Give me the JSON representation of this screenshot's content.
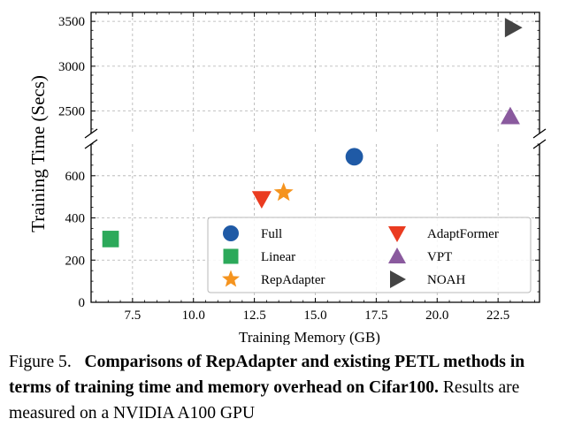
{
  "chart_data": {
    "type": "scatter",
    "xlabel": "Training Memory (GB)",
    "ylabel": "Training Time (Secs)",
    "xlim": [
      5.8,
      24.2
    ],
    "xticks": [
      7.5,
      10.0,
      12.5,
      15.0,
      17.5,
      20.0,
      22.5
    ],
    "xtick_labels": [
      "7.5",
      "10.0",
      "12.5",
      "15.0",
      "17.5",
      "20.0",
      "22.5"
    ],
    "lower_ylim": [
      0,
      750
    ],
    "upper_ylim": [
      2250,
      3600
    ],
    "axis_break": "between 750 and 2250",
    "yticks": [
      0,
      200,
      400,
      600,
      2500,
      3000,
      3500
    ],
    "ytick_labels": [
      "0",
      "200",
      "400",
      "600",
      "2500",
      "3000",
      "3500"
    ],
    "grid": true,
    "legend_position": "lower-right",
    "series": [
      {
        "name": "Full",
        "x": 16.6,
        "y": 690,
        "marker": "circle",
        "color": "#1f5aa6"
      },
      {
        "name": "Linear",
        "x": 6.6,
        "y": 300,
        "marker": "square",
        "color": "#2ca95a"
      },
      {
        "name": "RepAdapter",
        "x": 13.7,
        "y": 520,
        "marker": "star",
        "color": "#f5941f"
      },
      {
        "name": "AdaptFormer",
        "x": 12.8,
        "y": 490,
        "marker": "triangle-down",
        "color": "#ea3b20"
      },
      {
        "name": "VPT",
        "x": 23.0,
        "y": 2440,
        "marker": "triangle-up",
        "color": "#8a5a9e"
      },
      {
        "name": "NOAH",
        "x": 23.1,
        "y": 3430,
        "marker": "triangle-right",
        "color": "#444444"
      }
    ]
  },
  "caption": {
    "figure_label": "Figure 5.",
    "bold_text": "Comparisons of RepAdapter and existing PETL methods in terms of training time and memory overhead on Cifar100.",
    "normal_text": " Results are measured on a NVIDIA A100 GPU"
  }
}
